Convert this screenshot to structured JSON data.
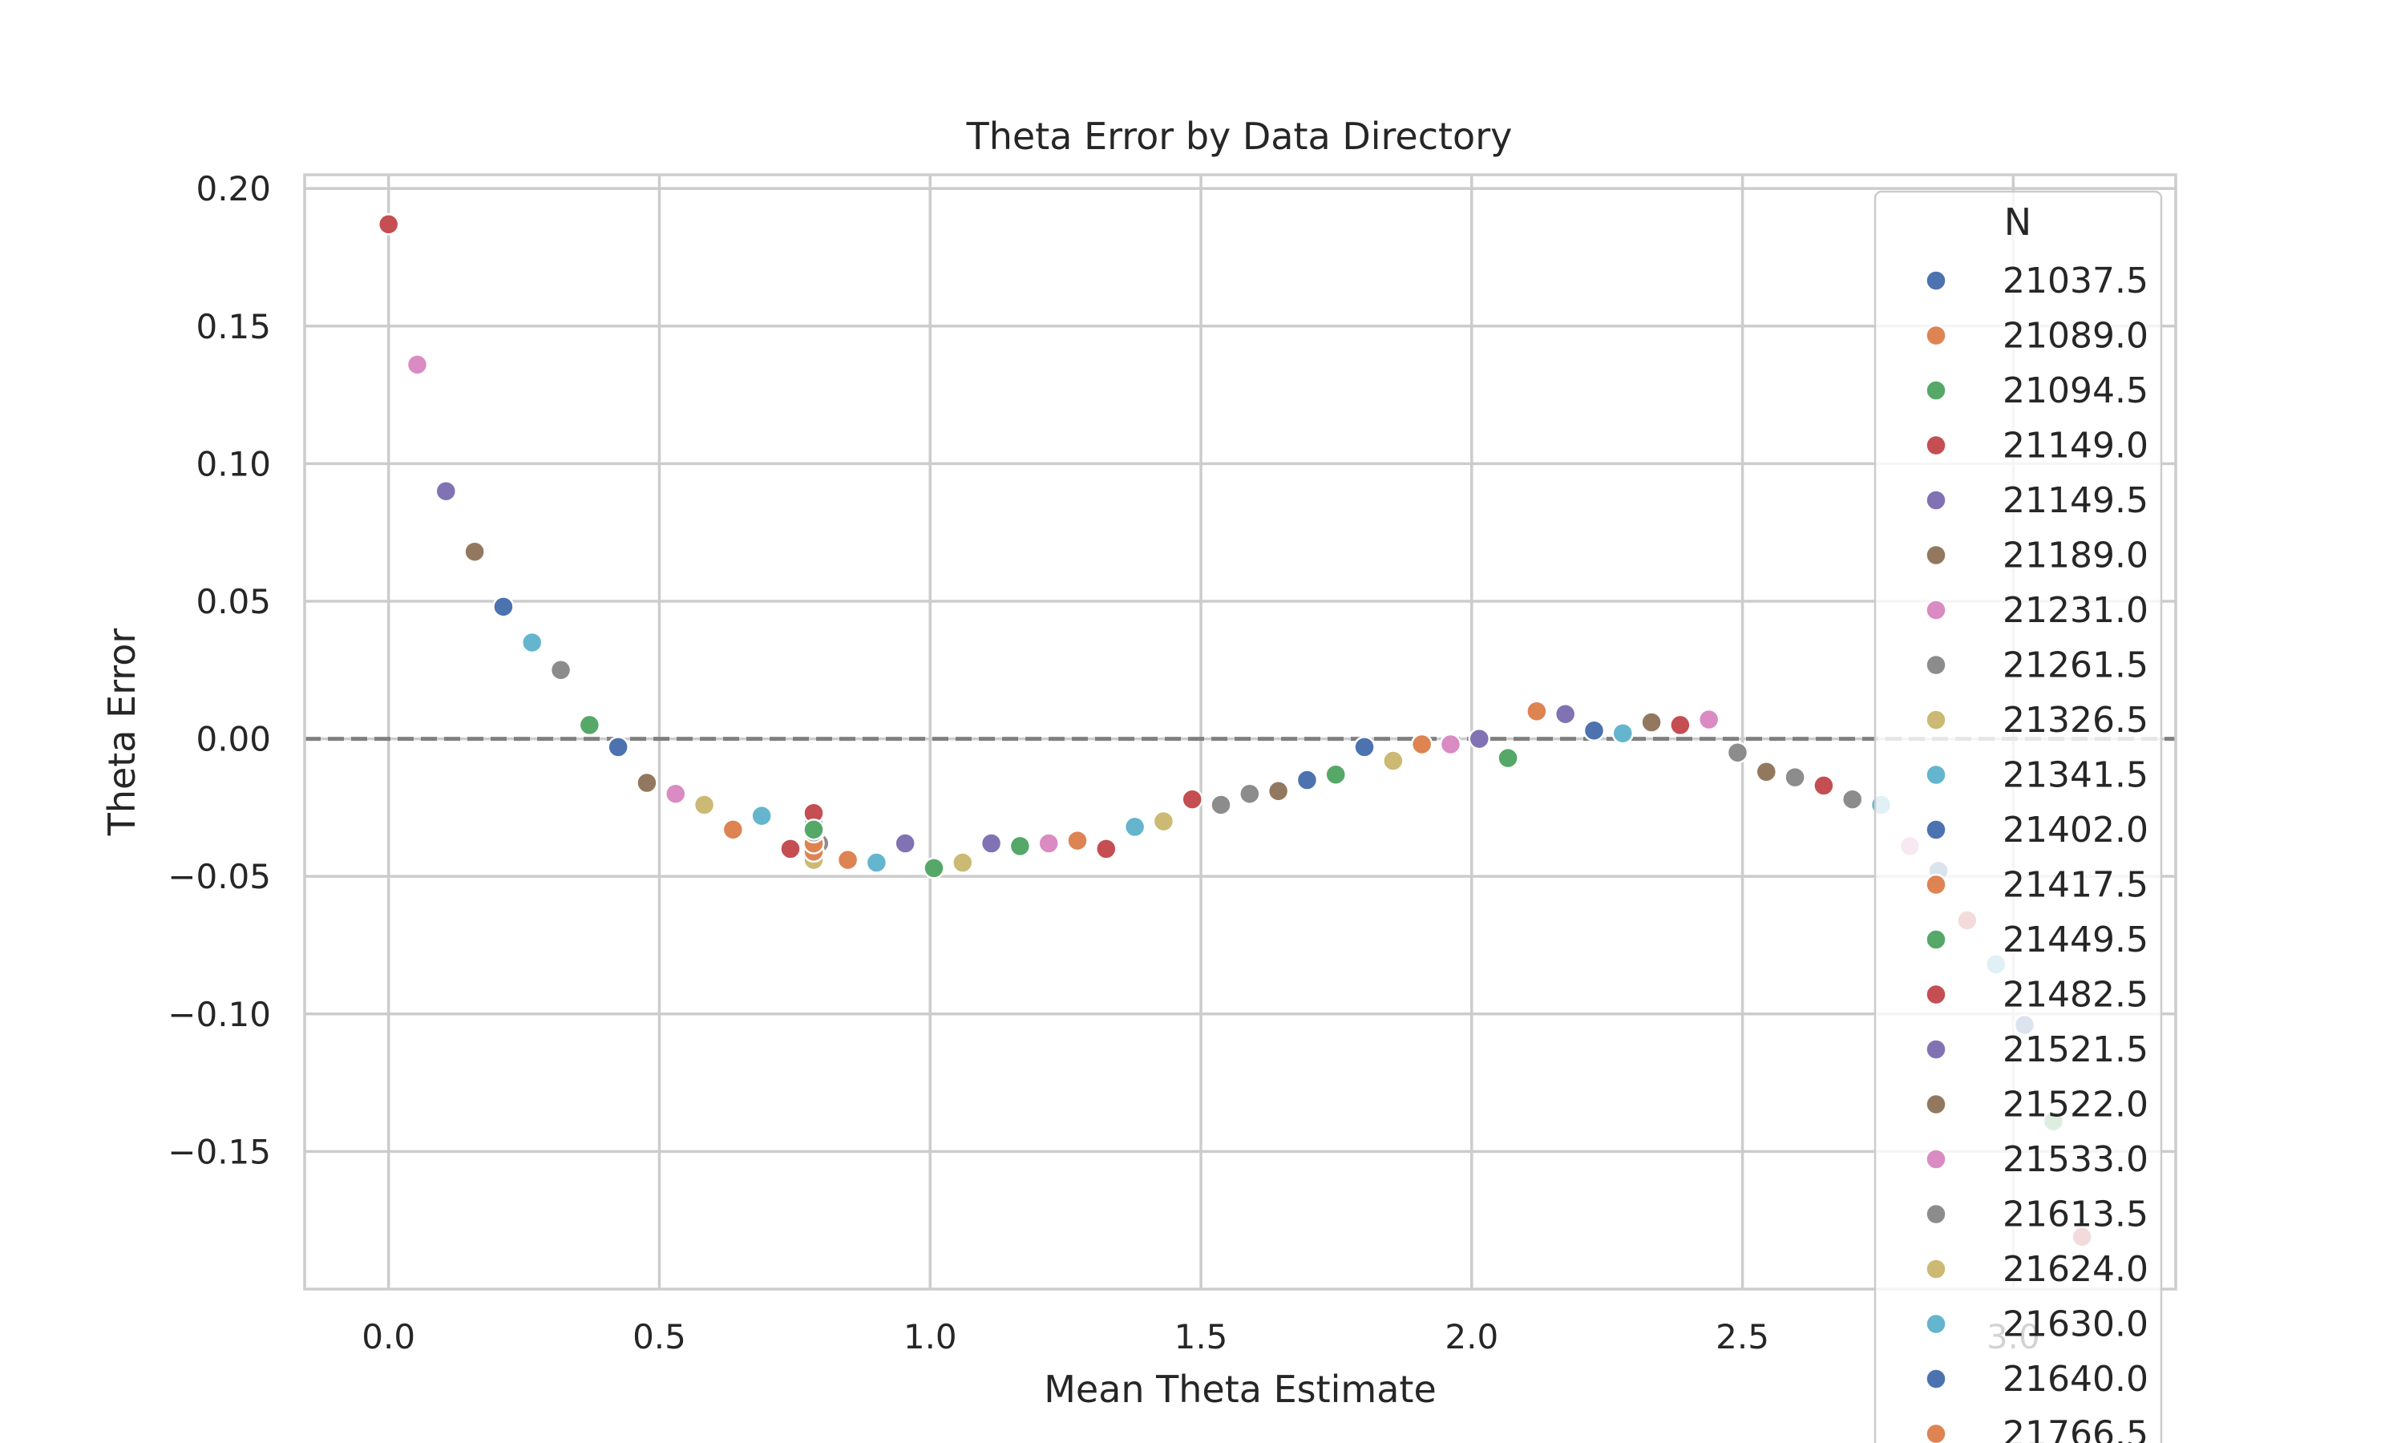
{
  "chart_data": {
    "type": "scatter",
    "title": "Theta Error by Data Directory",
    "xlabel": "Mean Theta Estimate",
    "ylabel": "Theta Error",
    "xlim": [
      -0.155,
      3.3
    ],
    "ylim": [
      -0.2,
      0.205
    ],
    "x_ticks": [
      0.0,
      0.5,
      1.0,
      1.5,
      2.0,
      2.5,
      3.0
    ],
    "x_tick_labels": [
      "0.0",
      "0.5",
      "1.0",
      "1.5",
      "2.0",
      "2.5",
      "3.0"
    ],
    "y_ticks": [
      0.2,
      0.15,
      0.1,
      0.05,
      0.0,
      -0.05,
      -0.1,
      -0.15
    ],
    "y_tick_labels": [
      "0.20",
      "0.15",
      "0.10",
      "0.05",
      "0.00",
      "−0.05",
      "−0.10",
      "−0.15"
    ],
    "grid": true,
    "reference_line": {
      "y": 0.0,
      "style": "dashed",
      "color": "#808080"
    },
    "legend": {
      "title": "N",
      "placement": "right",
      "entries": [
        {
          "label": "21037.5",
          "color": "#4c72b0"
        },
        {
          "label": "21089.0",
          "color": "#dd8452"
        },
        {
          "label": "21094.5",
          "color": "#55a868"
        },
        {
          "label": "21149.0",
          "color": "#c44e52"
        },
        {
          "label": "21149.5",
          "color": "#8172b3"
        },
        {
          "label": "21189.0",
          "color": "#937860"
        },
        {
          "label": "21231.0",
          "color": "#da8bc3"
        },
        {
          "label": "21261.5",
          "color": "#8c8c8c"
        },
        {
          "label": "21326.5",
          "color": "#ccb974"
        },
        {
          "label": "21341.5",
          "color": "#64b5cd"
        },
        {
          "label": "21402.0",
          "color": "#4c72b0"
        },
        {
          "label": "21417.5",
          "color": "#dd8452"
        },
        {
          "label": "21449.5",
          "color": "#55a868"
        },
        {
          "label": "21482.5",
          "color": "#c44e52"
        },
        {
          "label": "21521.5",
          "color": "#8172b3"
        },
        {
          "label": "21522.0",
          "color": "#937860"
        },
        {
          "label": "21533.0",
          "color": "#da8bc3"
        },
        {
          "label": "21613.5",
          "color": "#8c8c8c"
        },
        {
          "label": "21624.0",
          "color": "#ccb974"
        },
        {
          "label": "21630.0",
          "color": "#64b5cd"
        },
        {
          "label": "21640.0",
          "color": "#4c72b0"
        },
        {
          "label": "21766.5",
          "color": "#dd8452"
        }
      ]
    },
    "points": [
      {
        "x": 0.0,
        "y": 0.187,
        "color": "#c44e52"
      },
      {
        "x": 0.053,
        "y": 0.136,
        "color": "#da8bc3"
      },
      {
        "x": 0.106,
        "y": 0.09,
        "color": "#8172b3"
      },
      {
        "x": 0.159,
        "y": 0.068,
        "color": "#937860"
      },
      {
        "x": 0.212,
        "y": 0.048,
        "color": "#4c72b0"
      },
      {
        "x": 0.265,
        "y": 0.035,
        "color": "#64b5cd"
      },
      {
        "x": 0.318,
        "y": 0.025,
        "color": "#8c8c8c"
      },
      {
        "x": 0.371,
        "y": 0.005,
        "color": "#55a868"
      },
      {
        "x": 0.424,
        "y": -0.003,
        "color": "#4c72b0"
      },
      {
        "x": 0.477,
        "y": -0.016,
        "color": "#937860"
      },
      {
        "x": 0.53,
        "y": -0.02,
        "color": "#da8bc3"
      },
      {
        "x": 0.583,
        "y": -0.024,
        "color": "#ccb974"
      },
      {
        "x": 0.636,
        "y": -0.033,
        "color": "#dd8452"
      },
      {
        "x": 0.689,
        "y": -0.028,
        "color": "#64b5cd"
      },
      {
        "x": 0.742,
        "y": -0.04,
        "color": "#c44e52"
      },
      {
        "x": 0.795,
        "y": -0.038,
        "color": "#8c8c8c"
      },
      {
        "x": 0.785,
        "y": -0.044,
        "color": "#ccb974"
      },
      {
        "x": 0.785,
        "y": -0.041,
        "color": "#dd8452"
      },
      {
        "x": 0.785,
        "y": -0.038,
        "color": "#dd8452"
      },
      {
        "x": 0.785,
        "y": -0.034,
        "color": "#8c8c8c"
      },
      {
        "x": 0.785,
        "y": -0.031,
        "color": "#64b5cd"
      },
      {
        "x": 0.785,
        "y": -0.027,
        "color": "#c44e52"
      },
      {
        "x": 0.785,
        "y": -0.033,
        "color": "#55a868"
      },
      {
        "x": 0.848,
        "y": -0.044,
        "color": "#dd8452"
      },
      {
        "x": 0.901,
        "y": -0.045,
        "color": "#64b5cd"
      },
      {
        "x": 0.954,
        "y": -0.038,
        "color": "#8172b3"
      },
      {
        "x": 1.007,
        "y": -0.047,
        "color": "#55a868"
      },
      {
        "x": 1.06,
        "y": -0.045,
        "color": "#ccb974"
      },
      {
        "x": 1.113,
        "y": -0.038,
        "color": "#8172b3"
      },
      {
        "x": 1.166,
        "y": -0.039,
        "color": "#55a868"
      },
      {
        "x": 1.219,
        "y": -0.038,
        "color": "#da8bc3"
      },
      {
        "x": 1.272,
        "y": -0.037,
        "color": "#dd8452"
      },
      {
        "x": 1.325,
        "y": -0.04,
        "color": "#c44e52"
      },
      {
        "x": 1.378,
        "y": -0.032,
        "color": "#64b5cd"
      },
      {
        "x": 1.431,
        "y": -0.03,
        "color": "#ccb974"
      },
      {
        "x": 1.484,
        "y": -0.022,
        "color": "#c44e52"
      },
      {
        "x": 1.537,
        "y": -0.024,
        "color": "#8c8c8c"
      },
      {
        "x": 1.59,
        "y": -0.02,
        "color": "#8c8c8c"
      },
      {
        "x": 1.643,
        "y": -0.019,
        "color": "#937860"
      },
      {
        "x": 1.696,
        "y": -0.015,
        "color": "#4c72b0"
      },
      {
        "x": 1.749,
        "y": -0.013,
        "color": "#55a868"
      },
      {
        "x": 1.802,
        "y": -0.003,
        "color": "#4c72b0"
      },
      {
        "x": 1.855,
        "y": -0.008,
        "color": "#ccb974"
      },
      {
        "x": 1.908,
        "y": -0.002,
        "color": "#dd8452"
      },
      {
        "x": 1.961,
        "y": -0.002,
        "color": "#da8bc3"
      },
      {
        "x": 2.014,
        "y": 0.0,
        "color": "#8172b3"
      },
      {
        "x": 2.067,
        "y": -0.007,
        "color": "#55a868"
      },
      {
        "x": 2.12,
        "y": 0.01,
        "color": "#dd8452"
      },
      {
        "x": 2.173,
        "y": 0.009,
        "color": "#8172b3"
      },
      {
        "x": 2.226,
        "y": 0.003,
        "color": "#4c72b0"
      },
      {
        "x": 2.279,
        "y": 0.002,
        "color": "#64b5cd"
      },
      {
        "x": 2.332,
        "y": 0.006,
        "color": "#937860"
      },
      {
        "x": 2.385,
        "y": 0.005,
        "color": "#c44e52"
      },
      {
        "x": 2.438,
        "y": 0.007,
        "color": "#da8bc3"
      },
      {
        "x": 2.491,
        "y": -0.005,
        "color": "#8c8c8c"
      },
      {
        "x": 2.544,
        "y": -0.012,
        "color": "#937860"
      },
      {
        "x": 2.597,
        "y": -0.014,
        "color": "#8c8c8c"
      },
      {
        "x": 2.65,
        "y": -0.017,
        "color": "#c44e52"
      },
      {
        "x": 2.703,
        "y": -0.022,
        "color": "#8c8c8c"
      },
      {
        "x": 2.756,
        "y": -0.024,
        "color": "#64b5cd"
      },
      {
        "x": 2.809,
        "y": -0.039,
        "color": "#da8bc3"
      },
      {
        "x": 2.862,
        "y": -0.048,
        "color": "#4c72b0"
      },
      {
        "x": 2.915,
        "y": -0.066,
        "color": "#c44e52"
      },
      {
        "x": 2.968,
        "y": -0.082,
        "color": "#64b5cd"
      },
      {
        "x": 3.021,
        "y": -0.104,
        "color": "#4c72b0"
      },
      {
        "x": 3.074,
        "y": -0.139,
        "color": "#55a868"
      },
      {
        "x": 3.127,
        "y": -0.181,
        "color": "#c44e52"
      }
    ]
  }
}
